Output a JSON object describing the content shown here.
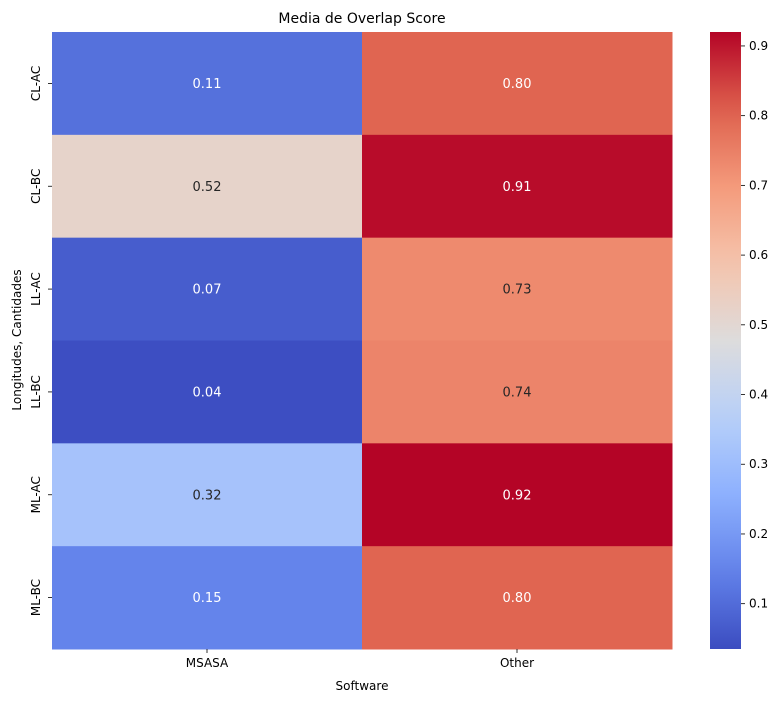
{
  "chart_data": {
    "type": "heatmap",
    "title": "Media de Overlap Score",
    "xlabel": "Software",
    "ylabel": "Longitudes, Cantidades",
    "x_categories": [
      "MSASA",
      "Other"
    ],
    "y_categories": [
      "CL-AC",
      "CL-BC",
      "LL-AC",
      "LL-BC",
      "ML-AC",
      "ML-BC"
    ],
    "values": [
      [
        0.11,
        0.8
      ],
      [
        0.52,
        0.91
      ],
      [
        0.07,
        0.73
      ],
      [
        0.04,
        0.74
      ],
      [
        0.32,
        0.92
      ],
      [
        0.15,
        0.8
      ]
    ],
    "value_labels": [
      [
        "0.11",
        "0.80"
      ],
      [
        "0.52",
        "0.91"
      ],
      [
        "0.07",
        "0.73"
      ],
      [
        "0.04",
        "0.74"
      ],
      [
        "0.32",
        "0.92"
      ],
      [
        "0.15",
        "0.80"
      ]
    ],
    "colormap": "coolwarm",
    "vmin": 0.035,
    "vmax": 0.92,
    "colorbar_ticks": [
      "0.1",
      "0.2",
      "0.3",
      "0.4",
      "0.5",
      "0.6",
      "0.7",
      "0.8",
      "0.9"
    ],
    "colorbar_tick_values": [
      0.1,
      0.2,
      0.3,
      0.4,
      0.5,
      0.6,
      0.7,
      0.8,
      0.9
    ],
    "grid": false,
    "colorbar_position": "right"
  }
}
